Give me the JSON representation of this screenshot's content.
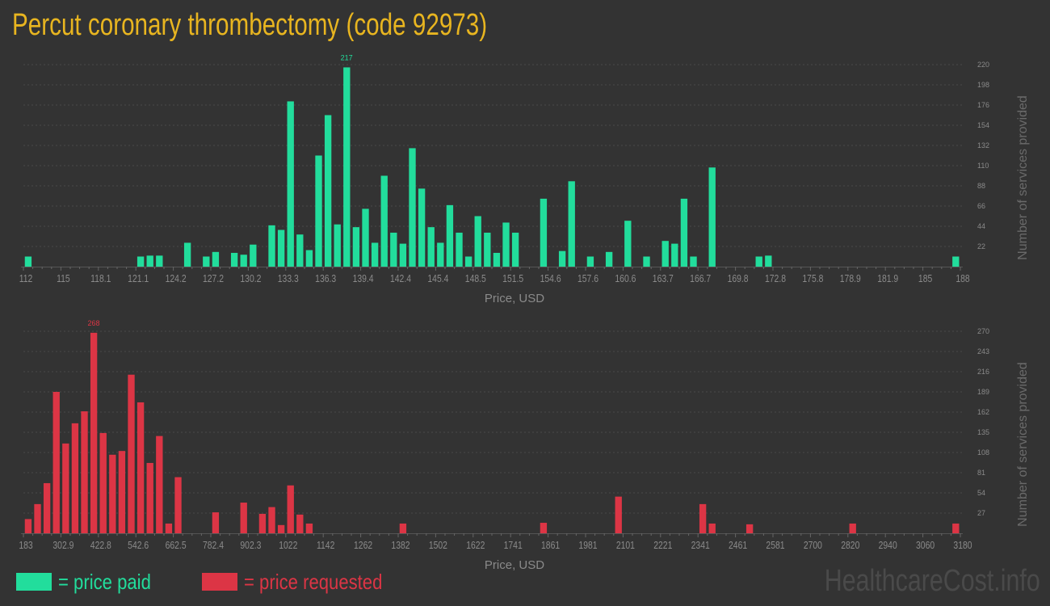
{
  "title": "Percut coronary thrombectomy (code 92973)",
  "legend": {
    "paid": {
      "label": "= price paid",
      "color": "#22dd9c"
    },
    "requested": {
      "label": "= price requested",
      "color": "#dc3545"
    }
  },
  "watermark": "HealthcareCost.info",
  "colors": {
    "background": "#333333",
    "title": "#e8b520",
    "axis_text": "#8a8a8a",
    "grid": "#4a4a4a"
  },
  "chart_data": [
    {
      "type": "bar",
      "series_name": "price paid",
      "color": "#22dd9c",
      "xlabel": "Price, USD",
      "ylabel": "Number of services provided",
      "xlim": [
        112,
        188
      ],
      "ylim": [
        0,
        220
      ],
      "grid": true,
      "peak_label": "217",
      "x_ticks": [
        "112",
        "115",
        "118.1",
        "121.1",
        "124.2",
        "127.2",
        "130.2",
        "133.3",
        "136.3",
        "139.4",
        "142.4",
        "145.4",
        "148.5",
        "151.5",
        "154.6",
        "157.6",
        "160.6",
        "163.7",
        "166.7",
        "169.8",
        "172.8",
        "175.8",
        "178.9",
        "181.9",
        "185",
        "188"
      ],
      "y_ticks": [
        "22",
        "44",
        "66",
        "88",
        "110",
        "132",
        "154",
        "176",
        "198",
        "220"
      ],
      "bins": [
        {
          "price": 112,
          "count": 11
        },
        {
          "price": 121.12,
          "count": 11
        },
        {
          "price": 121.88,
          "count": 12
        },
        {
          "price": 122.64,
          "count": 12
        },
        {
          "price": 124.92,
          "count": 26
        },
        {
          "price": 126.44,
          "count": 11
        },
        {
          "price": 127.2,
          "count": 16
        },
        {
          "price": 128.72,
          "count": 15
        },
        {
          "price": 129.48,
          "count": 13
        },
        {
          "price": 130.24,
          "count": 24
        },
        {
          "price": 131.76,
          "count": 45
        },
        {
          "price": 132.52,
          "count": 40
        },
        {
          "price": 133.28,
          "count": 180
        },
        {
          "price": 134.04,
          "count": 35
        },
        {
          "price": 134.8,
          "count": 18
        },
        {
          "price": 135.56,
          "count": 121
        },
        {
          "price": 136.32,
          "count": 165
        },
        {
          "price": 137.08,
          "count": 46
        },
        {
          "price": 137.84,
          "count": 217
        },
        {
          "price": 138.6,
          "count": 43
        },
        {
          "price": 139.36,
          "count": 63
        },
        {
          "price": 140.12,
          "count": 26
        },
        {
          "price": 140.88,
          "count": 99
        },
        {
          "price": 141.64,
          "count": 37
        },
        {
          "price": 142.4,
          "count": 25
        },
        {
          "price": 143.16,
          "count": 129
        },
        {
          "price": 143.92,
          "count": 85
        },
        {
          "price": 144.68,
          "count": 43
        },
        {
          "price": 145.44,
          "count": 26
        },
        {
          "price": 146.2,
          "count": 67
        },
        {
          "price": 146.96,
          "count": 37
        },
        {
          "price": 147.72,
          "count": 11
        },
        {
          "price": 148.48,
          "count": 55
        },
        {
          "price": 149.24,
          "count": 37
        },
        {
          "price": 150,
          "count": 15
        },
        {
          "price": 150.76,
          "count": 48
        },
        {
          "price": 151.52,
          "count": 37
        },
        {
          "price": 153.8,
          "count": 74
        },
        {
          "price": 155.32,
          "count": 17
        },
        {
          "price": 156.08,
          "count": 93
        },
        {
          "price": 157.6,
          "count": 11
        },
        {
          "price": 159.12,
          "count": 16
        },
        {
          "price": 160.64,
          "count": 50
        },
        {
          "price": 162.16,
          "count": 11
        },
        {
          "price": 163.68,
          "count": 28
        },
        {
          "price": 164.44,
          "count": 25
        },
        {
          "price": 165.2,
          "count": 74
        },
        {
          "price": 165.96,
          "count": 11
        },
        {
          "price": 167.48,
          "count": 108
        },
        {
          "price": 171.28,
          "count": 11
        },
        {
          "price": 172.04,
          "count": 12
        },
        {
          "price": 187.24,
          "count": 11
        }
      ]
    },
    {
      "type": "bar",
      "series_name": "price requested",
      "color": "#dc3545",
      "xlabel": "Price, USD",
      "ylabel": "Number of services provided",
      "xlim": [
        183,
        3180
      ],
      "ylim": [
        0,
        270
      ],
      "grid": true,
      "peak_label": "268",
      "x_ticks": [
        "183",
        "302.9",
        "422.8",
        "542.6",
        "662.5",
        "782.4",
        "902.3",
        "1022",
        "1142",
        "1262",
        "1382",
        "1502",
        "1622",
        "1741",
        "1861",
        "1981",
        "2101",
        "2221",
        "2341",
        "2461",
        "2581",
        "2700",
        "2820",
        "2940",
        "3060",
        "3180"
      ],
      "y_ticks": [
        "27",
        "54",
        "81",
        "108",
        "135",
        "162",
        "189",
        "216",
        "243",
        "270"
      ],
      "bins": [
        {
          "price": 183,
          "count": 19
        },
        {
          "price": 212.97,
          "count": 39
        },
        {
          "price": 242.94,
          "count": 67
        },
        {
          "price": 272.91,
          "count": 189
        },
        {
          "price": 302.88,
          "count": 120
        },
        {
          "price": 332.85,
          "count": 147
        },
        {
          "price": 362.82,
          "count": 163
        },
        {
          "price": 392.79,
          "count": 268
        },
        {
          "price": 422.76,
          "count": 134
        },
        {
          "price": 452.73,
          "count": 105
        },
        {
          "price": 482.7,
          "count": 110
        },
        {
          "price": 512.67,
          "count": 212
        },
        {
          "price": 542.64,
          "count": 175
        },
        {
          "price": 572.61,
          "count": 94
        },
        {
          "price": 602.58,
          "count": 130
        },
        {
          "price": 632.55,
          "count": 13
        },
        {
          "price": 662.52,
          "count": 75
        },
        {
          "price": 782.4,
          "count": 28
        },
        {
          "price": 872.31,
          "count": 41
        },
        {
          "price": 932.25,
          "count": 26
        },
        {
          "price": 962.22,
          "count": 35
        },
        {
          "price": 992.19,
          "count": 11
        },
        {
          "price": 1022.16,
          "count": 64
        },
        {
          "price": 1052.13,
          "count": 25
        },
        {
          "price": 1082.1,
          "count": 13
        },
        {
          "price": 1381.8,
          "count": 13
        },
        {
          "price": 1831.35,
          "count": 14
        },
        {
          "price": 2071.11,
          "count": 49
        },
        {
          "price": 2340.84,
          "count": 39
        },
        {
          "price": 2370.81,
          "count": 13
        },
        {
          "price": 2490.69,
          "count": 12
        },
        {
          "price": 2820.36,
          "count": 13
        },
        {
          "price": 3150.03,
          "count": 13
        }
      ]
    }
  ]
}
